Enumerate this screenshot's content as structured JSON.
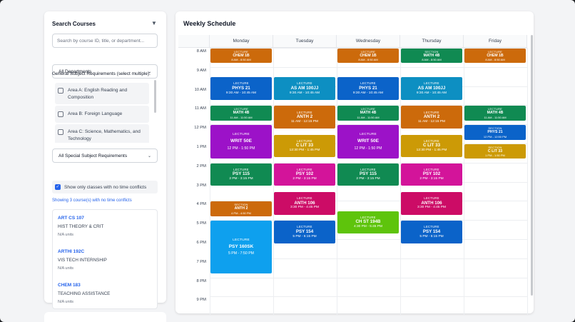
{
  "sidebar": {
    "title": "Search Courses",
    "filter_icon": "filter-icon",
    "search_placeholder": "Search by course ID, title, or department...",
    "department_select": "All Departments",
    "ge_label": "General Subject Requirements (select multiple):",
    "ge_options": [
      "Area A: English Reading and Composition",
      "Area B: Foreign Language",
      "Area C: Science, Mathematics, and Technology"
    ],
    "special_select": "All Special Subject Requirements",
    "conflict_checkbox_label": "Show only classes with no time conflicts",
    "conflict_checked": true,
    "showing_text": "Showing 3 course(s) with no time conflicts",
    "courses": [
      {
        "id": "ART CS 107",
        "name": "HIST THEORY & CRIT",
        "units": "N/A units"
      },
      {
        "id": "ARTHI 192C",
        "name": "VIS TECH INTERNSHIP",
        "units": "N/A units"
      },
      {
        "id": "CHEM 183",
        "name": "TEACHING ASSISTANCE",
        "units": "N/A units"
      }
    ]
  },
  "schedule": {
    "title": "Weekly Schedule",
    "days": [
      "Monday",
      "Tuesday",
      "Wednesday",
      "Thursday",
      "Friday"
    ],
    "hours": [
      "8 AM",
      "9 AM",
      "10 AM",
      "11 AM",
      "12 PM",
      "1 PM",
      "2 PM",
      "3 PM",
      "4 PM",
      "5 PM",
      "6 PM",
      "7 PM",
      "8 PM",
      "9 PM"
    ],
    "colors": {
      "orange": "#cc6a0b",
      "green": "#108a52",
      "blue": "#0b63c9",
      "cyan": "#0d8fc2",
      "purple": "#9c12c8",
      "gold": "#cc9a06",
      "pink": "#d3149a",
      "crimson": "#cc0c66",
      "lime": "#5ec40c",
      "sky": "#0ea0ee"
    },
    "events": [
      {
        "day": 0,
        "start": 8.0,
        "end": 8.833,
        "type": "LECTURE",
        "code": "CHEM 1B",
        "time": "8 AM - 8:50 AM",
        "color": "orange",
        "size": "sm"
      },
      {
        "day": 2,
        "start": 8.0,
        "end": 8.833,
        "type": "LECTURE",
        "code": "CHEM 1B",
        "time": "8 AM - 8:50 AM",
        "color": "orange",
        "size": "sm"
      },
      {
        "day": 4,
        "start": 8.0,
        "end": 8.833,
        "type": "LECTURE",
        "code": "CHEM 1B",
        "time": "8 AM - 8:50 AM",
        "color": "orange",
        "size": "sm"
      },
      {
        "day": 3,
        "start": 8.0,
        "end": 8.833,
        "type": "SECTION",
        "code": "MATH 4B",
        "time": "8 AM - 8:50 AM",
        "color": "green",
        "size": "sm"
      },
      {
        "day": 0,
        "start": 9.5,
        "end": 10.75,
        "type": "LECTURE",
        "code": "PHYS 21",
        "time": "9:30 AM - 10:45 AM",
        "color": "blue",
        "size": "md"
      },
      {
        "day": 2,
        "start": 9.5,
        "end": 10.75,
        "type": "LECTURE",
        "code": "PHYS 21",
        "time": "9:30 AM - 10:45 AM",
        "color": "blue",
        "size": "md"
      },
      {
        "day": 1,
        "start": 9.5,
        "end": 10.75,
        "type": "LECTURE",
        "code": "AS AM 100JJ",
        "time": "9:30 AM - 10:45 AM",
        "color": "cyan",
        "size": "md"
      },
      {
        "day": 3,
        "start": 9.5,
        "end": 10.75,
        "type": "LECTURE",
        "code": "AS AM 100JJ",
        "time": "9:30 AM - 10:45 AM",
        "color": "cyan",
        "size": "md"
      },
      {
        "day": 0,
        "start": 11.0,
        "end": 11.833,
        "type": "LECTURE",
        "code": "MATH 4B",
        "time": "11 AM - 11:50 AM",
        "color": "green",
        "size": "sm"
      },
      {
        "day": 2,
        "start": 11.0,
        "end": 11.833,
        "type": "LECTURE",
        "code": "MATH 4B",
        "time": "11 AM - 11:50 AM",
        "color": "green",
        "size": "sm"
      },
      {
        "day": 4,
        "start": 11.0,
        "end": 11.833,
        "type": "LECTURE",
        "code": "MATH 4B",
        "time": "11 AM - 11:50 AM",
        "color": "green",
        "size": "sm"
      },
      {
        "day": 1,
        "start": 11.0,
        "end": 12.25,
        "type": "LECTURE",
        "code": "ANTH 2",
        "time": "11 AM - 12:15 PM",
        "color": "orange",
        "size": "md"
      },
      {
        "day": 3,
        "start": 11.0,
        "end": 12.25,
        "type": "LECTURE",
        "code": "ANTH 2",
        "time": "11 AM - 12:15 PM",
        "color": "orange",
        "size": "md"
      },
      {
        "day": 0,
        "start": 12.0,
        "end": 13.833,
        "type": "LECTURE",
        "code": "WRIT 50E",
        "time": "12 PM - 1:50 PM",
        "color": "purple",
        "size": "lg"
      },
      {
        "day": 2,
        "start": 12.0,
        "end": 13.833,
        "type": "LECTURE",
        "code": "WRIT 50E",
        "time": "12 PM - 1:50 PM",
        "color": "purple",
        "size": "lg"
      },
      {
        "day": 4,
        "start": 12.0,
        "end": 12.833,
        "type": "SECTION",
        "code": "PHYS 21",
        "time": "12 PM - 12:50 PM",
        "color": "blue",
        "size": "sm"
      },
      {
        "day": 1,
        "start": 12.5,
        "end": 13.75,
        "type": "LECTURE",
        "code": "C LIT 33",
        "time": "12:30 PM - 1:45 PM",
        "color": "gold",
        "size": "md"
      },
      {
        "day": 3,
        "start": 12.5,
        "end": 13.75,
        "type": "LECTURE",
        "code": "C LIT 33",
        "time": "12:30 PM - 1:45 PM",
        "color": "gold",
        "size": "md"
      },
      {
        "day": 4,
        "start": 13.0,
        "end": 13.833,
        "type": "SECTION",
        "code": "C LIT 33",
        "time": "1 PM - 1:50 PM",
        "color": "gold",
        "size": "sm"
      },
      {
        "day": 0,
        "start": 14.0,
        "end": 15.25,
        "type": "LECTURE",
        "code": "PSY 115",
        "time": "2 PM - 3:15 PM",
        "color": "green",
        "size": "md"
      },
      {
        "day": 2,
        "start": 14.0,
        "end": 15.25,
        "type": "LECTURE",
        "code": "PSY 115",
        "time": "2 PM - 3:15 PM",
        "color": "green",
        "size": "md"
      },
      {
        "day": 1,
        "start": 14.0,
        "end": 15.25,
        "type": "LECTURE",
        "code": "PSY 102",
        "time": "2 PM - 3:15 PM",
        "color": "pink",
        "size": "md"
      },
      {
        "day": 3,
        "start": 14.0,
        "end": 15.25,
        "type": "LECTURE",
        "code": "PSY 102",
        "time": "2 PM - 3:15 PM",
        "color": "pink",
        "size": "md"
      },
      {
        "day": 1,
        "start": 15.5,
        "end": 16.75,
        "type": "LECTURE",
        "code": "ANTH 106",
        "time": "3:30 PM - 4:45 PM",
        "color": "crimson",
        "size": "md"
      },
      {
        "day": 3,
        "start": 15.5,
        "end": 16.75,
        "type": "LECTURE",
        "code": "ANTH 106",
        "time": "3:30 PM - 4:45 PM",
        "color": "crimson",
        "size": "md"
      },
      {
        "day": 0,
        "start": 16.0,
        "end": 16.833,
        "type": "SECTION",
        "code": "ANTH 2",
        "time": "4 PM - 4:50 PM",
        "color": "orange",
        "size": "sm"
      },
      {
        "day": 2,
        "start": 16.5,
        "end": 17.75,
        "type": "LECTURE",
        "code": "CH ST 194B",
        "time": "4:30 PM - 5:45 PM",
        "color": "lime",
        "size": "md"
      },
      {
        "day": 1,
        "start": 17.0,
        "end": 18.25,
        "type": "LECTURE",
        "code": "PSY 154",
        "time": "5 PM - 6:15 PM",
        "color": "blue",
        "size": "md"
      },
      {
        "day": 3,
        "start": 17.0,
        "end": 18.25,
        "type": "LECTURE",
        "code": "PSY 154",
        "time": "5 PM - 6:15 PM",
        "color": "blue",
        "size": "md"
      },
      {
        "day": 0,
        "start": 17.0,
        "end": 19.833,
        "type": "LECTURE",
        "code": "PSY 160SK",
        "time": "5 PM - 7:50 PM",
        "color": "sky",
        "size": "lg"
      }
    ]
  }
}
